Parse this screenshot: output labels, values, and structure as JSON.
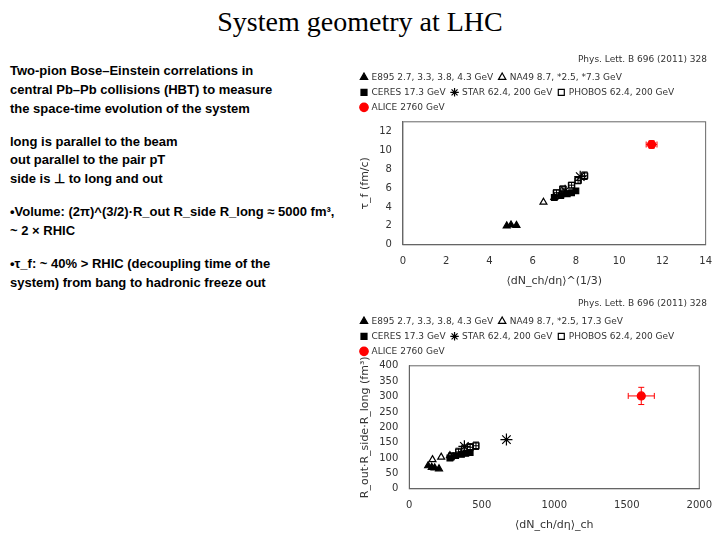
{
  "title": "System geometry at LHC",
  "annotations": [
    [
      "Two-pion Bose–Einstein correlations in",
      "central Pb–Pb collisions (HBT) to measure",
      "the space-time evolution of the system"
    ],
    [
      "long is parallel to the beam",
      "out parallel to the pair pT",
      "side is ⊥ to long and out"
    ],
    [
      "•Volume: (2π)^(3/2)·R_out R_side R_long ≈ 5000 fm³,",
      "~ 2 × RHIC"
    ],
    [
      "•τ_f: ~ 40% > RHIC (decoupling time of the",
      "system) from bang to hadronic freeze out"
    ]
  ],
  "chart_data": [
    {
      "type": "scatter",
      "subtitle": "Phys. Lett. B 696 (2011) 328",
      "x_label": "⟨dN_ch/dη⟩^(1/3)",
      "y_label": "τ_f (fm/c)",
      "xlim": [
        0,
        14
      ],
      "ylim": [
        0,
        13
      ],
      "xticks": [
        0,
        2,
        4,
        6,
        8,
        10,
        12,
        14
      ],
      "yticks": [
        0,
        2,
        4,
        6,
        8,
        10,
        12
      ],
      "grid": false,
      "legend": "upper left",
      "series": [
        {
          "name": "E895 2.7, 3.3, 3.8, 4.3 GeV",
          "marker": "triangle",
          "color": "black",
          "x": [
            4.8,
            5.0,
            5.25
          ],
          "values": [
            2.0,
            2.1,
            2.05
          ]
        },
        {
          "name": "NA49 8.7, *2.5, *7.3 GeV",
          "marker": "triangle-open",
          "color": "black",
          "x": [
            6.5,
            7.0,
            7.3
          ],
          "values": [
            4.5,
            5.0,
            5.3
          ]
        },
        {
          "name": "CERES 17.3 GeV",
          "marker": "square",
          "color": "black",
          "x": [
            7.0,
            7.3,
            7.6,
            7.8,
            8.0
          ],
          "values": [
            5.0,
            5.2,
            5.4,
            5.5,
            5.7
          ]
        },
        {
          "name": "STAR 62.4, 200 GeV",
          "marker": "star-open",
          "color": "black",
          "x": [
            7.5,
            8.2
          ],
          "values": [
            5.7,
            7.2
          ]
        },
        {
          "name": "PHOBOS 62.4, 200 GeV",
          "marker": "square-open",
          "color": "black",
          "x": [
            7.1,
            7.4,
            7.8,
            8.1,
            8.4
          ],
          "values": [
            5.5,
            5.9,
            6.3,
            6.8,
            7.3
          ],
          "xerr": [
            0.15,
            0.15,
            0.15,
            0.15,
            0.15
          ],
          "yerr": [
            0.3,
            0.3,
            0.3,
            0.35,
            0.4
          ]
        },
        {
          "name": "ALICE 2760 GeV",
          "marker": "circle",
          "color": "red",
          "x": [
            11.5
          ],
          "values": [
            10.6
          ],
          "xerr": [
            0.25
          ],
          "yerr": [
            0.4
          ]
        }
      ]
    },
    {
      "type": "scatter",
      "subtitle": "Phys. Lett. B 696 (2011) 328",
      "x_label": "⟨dN_ch/dη⟩_ch",
      "y_label": "R_out·R_side·R_long (fm³)",
      "xlim": [
        0,
        2000
      ],
      "ylim": [
        0,
        400
      ],
      "xticks": [
        0,
        500,
        1000,
        1500,
        2000
      ],
      "yticks": [
        0,
        50,
        100,
        150,
        200,
        250,
        300,
        350,
        400
      ],
      "grid": false,
      "legend": "upper left",
      "series": [
        {
          "name": "E895 2.7, 3.3, 3.8, 4.3 GeV",
          "marker": "triangle",
          "color": "black",
          "x": [
            130,
            155,
            175,
            205
          ],
          "values": [
            75,
            70,
            68,
            65
          ]
        },
        {
          "name": "NA49 8.7, *2.5, 17.3 GeV",
          "marker": "triangle-open",
          "color": "black",
          "x": [
            160,
            220,
            280
          ],
          "values": [
            95,
            103,
            108
          ]
        },
        {
          "name": "CERES 17.3 GeV",
          "marker": "square",
          "color": "black",
          "x": [
            280,
            320,
            360,
            390,
            420
          ],
          "values": [
            100,
            108,
            112,
            115,
            118
          ]
        },
        {
          "name": "STAR 62.4, 200 GeV",
          "marker": "star-open",
          "color": "black",
          "x": [
            380,
            670
          ],
          "values": [
            138,
            160
          ]
        },
        {
          "name": "PHOBOS 62.4, 200 GeV",
          "marker": "square-open",
          "color": "black",
          "x": [
            290,
            340,
            380,
            420,
            460
          ],
          "values": [
            105,
            120,
            130,
            135,
            140
          ],
          "xerr": [
            20,
            20,
            20,
            20,
            20
          ],
          "yerr": [
            12,
            12,
            12,
            12,
            12
          ]
        },
        {
          "name": "ALICE 2760 GeV",
          "marker": "circle",
          "color": "red",
          "x": [
            1600
          ],
          "values": [
            302
          ],
          "xerr": [
            90
          ],
          "yerr": [
            28
          ]
        }
      ]
    }
  ]
}
